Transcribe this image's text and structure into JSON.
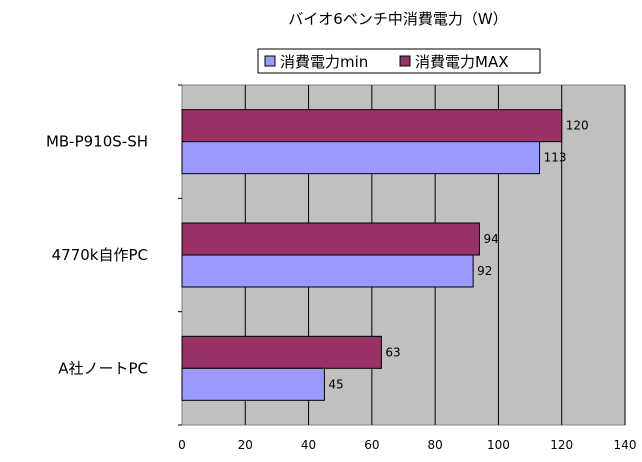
{
  "chart_data": {
    "type": "bar",
    "orientation": "horizontal",
    "title": "バイオ6ベンチ中消費電力（W）",
    "categories": [
      "MB-P910S-SH",
      "4770k自作PC",
      "A社ノートPC"
    ],
    "series": [
      {
        "name": "消費電力min",
        "values": [
          113,
          92,
          45
        ],
        "color": "#9999ff"
      },
      {
        "name": "消費電力MAX",
        "values": [
          120,
          94,
          63
        ],
        "color": "#993366"
      }
    ],
    "xlim": [
      0,
      140
    ],
    "xticks": [
      0,
      20,
      40,
      60,
      80,
      100,
      120,
      140
    ],
    "grid": true,
    "plot_background": "#c0c0c0",
    "legend_position": "top"
  }
}
